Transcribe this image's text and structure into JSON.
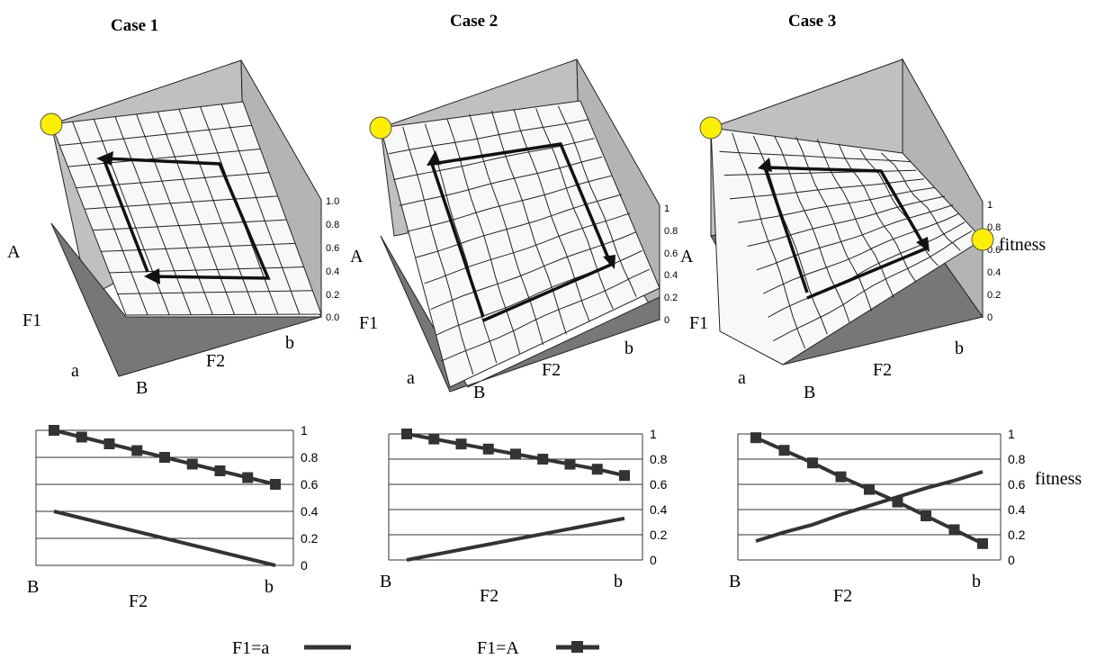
{
  "legend": {
    "low": "F1=a",
    "high": "F1=A"
  },
  "side_label": "fitness",
  "panels": [
    {
      "title": "Case 1",
      "surface": {
        "axis_labels": {
          "F1": "F1",
          "F2": "F2",
          "A": "A",
          "a": "a",
          "B": "B",
          "b": "b"
        },
        "z_ticks": [
          "0.0",
          "0.2",
          "0.4",
          "0.6",
          "0.8",
          "1.0"
        ]
      }
    },
    {
      "title": "Case 2",
      "surface": {
        "axis_labels": {
          "F1": "F1",
          "F2": "F2",
          "A": "A",
          "a": "a",
          "B": "B",
          "b": "b"
        },
        "z_ticks": [
          "0",
          "0.2",
          "0.4",
          "0.6",
          "0.8",
          "1"
        ]
      }
    },
    {
      "title": "Case 3",
      "surface": {
        "axis_labels": {
          "F1": "F1",
          "F2": "F2",
          "A": "A",
          "a": "a",
          "B": "B",
          "b": "b"
        },
        "z_ticks": [
          "0",
          "0.2",
          "0.4",
          "0.6",
          "0.8",
          "1"
        ]
      }
    }
  ],
  "chart_data": [
    {
      "type": "line",
      "panel": "Case 1",
      "xlabel": "F2",
      "x_start_label": "B",
      "x_end_label": "b",
      "ylim": [
        0,
        1
      ],
      "y_ticks": [
        "0",
        "0.2",
        "0.4",
        "0.6",
        "0.8",
        "1"
      ],
      "series": [
        {
          "name": "F1=a",
          "values": [
            0.4,
            0.0
          ]
        },
        {
          "name": "F1=A",
          "values": [
            1.0,
            0.95,
            0.9,
            0.85,
            0.8,
            0.75,
            0.7,
            0.65,
            0.6
          ]
        }
      ]
    },
    {
      "type": "line",
      "panel": "Case 2",
      "xlabel": "F2",
      "x_start_label": "B",
      "x_end_label": "b",
      "ylim": [
        0,
        1
      ],
      "y_ticks": [
        "0",
        "0.2",
        "0.4",
        "0.6",
        "0.8",
        "1"
      ],
      "series": [
        {
          "name": "F1=a",
          "values": [
            0.0,
            0.33
          ]
        },
        {
          "name": "F1=A",
          "values": [
            1.0,
            0.96,
            0.92,
            0.88,
            0.84,
            0.8,
            0.76,
            0.72,
            0.67
          ]
        }
      ]
    },
    {
      "type": "line",
      "panel": "Case 3",
      "xlabel": "F2",
      "x_start_label": "B",
      "x_end_label": "b",
      "ylim": [
        0,
        1
      ],
      "y_ticks": [
        "0",
        "0.2",
        "0.4",
        "0.6",
        "0.8",
        "1"
      ],
      "series": [
        {
          "name": "F1=a",
          "values": [
            0.15,
            0.22,
            0.28,
            0.36,
            0.43,
            0.5,
            0.57,
            0.63,
            0.7
          ]
        },
        {
          "name": "F1=A",
          "values": [
            0.97,
            0.87,
            0.77,
            0.66,
            0.56,
            0.46,
            0.35,
            0.24,
            0.13
          ]
        }
      ]
    }
  ]
}
